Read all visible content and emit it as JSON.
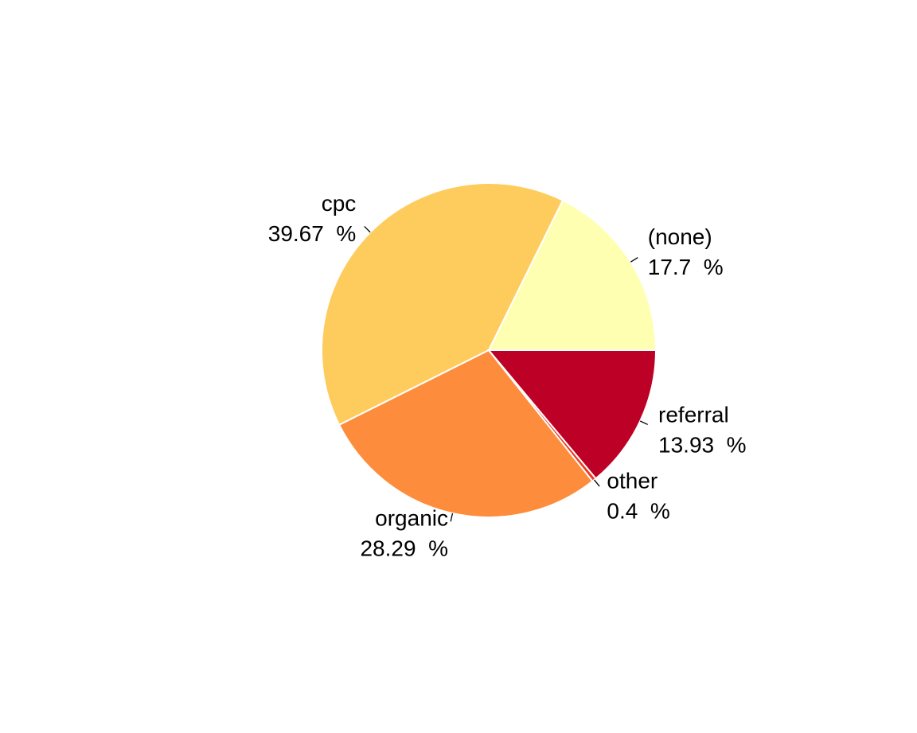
{
  "chart_data": {
    "type": "pie",
    "slices": [
      {
        "name": "(none)",
        "value": 17.7,
        "label": "(none)",
        "pct_label": "17.7  %",
        "color": "#FFFFB2"
      },
      {
        "name": "cpc",
        "value": 39.67,
        "label": "cpc",
        "pct_label": "39.67  %",
        "color": "#FECC5C"
      },
      {
        "name": "organic",
        "value": 28.29,
        "label": "organic",
        "pct_label": "28.29  %",
        "color": "#FD8D3C"
      },
      {
        "name": "other",
        "value": 0.4,
        "label": "other",
        "pct_label": "0.4  %",
        "color": "#F03B20"
      },
      {
        "name": "referral",
        "value": 13.93,
        "label": "referral",
        "pct_label": "13.93  %",
        "color": "#BD0026"
      }
    ],
    "direction": "counterclockwise",
    "start": "3 o'clock"
  }
}
